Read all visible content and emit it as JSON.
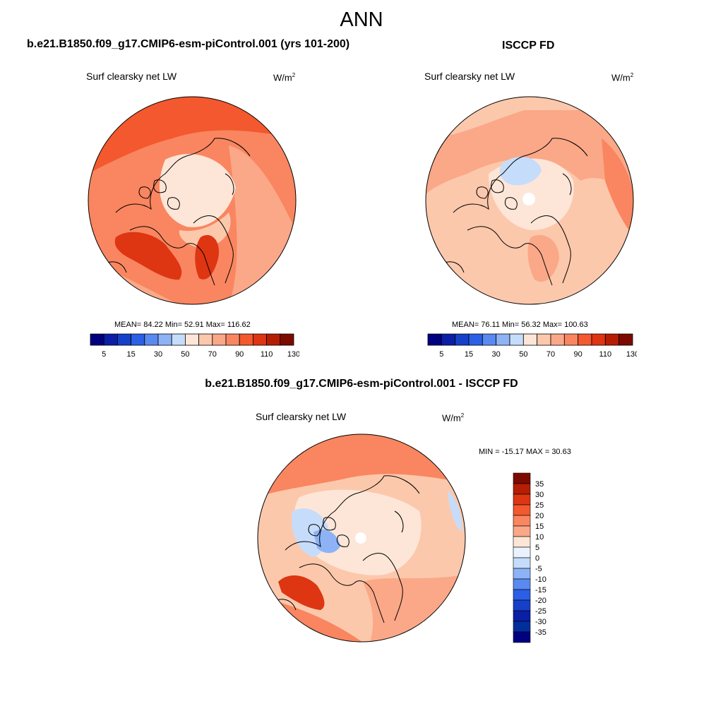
{
  "title": "ANN",
  "panels": [
    {
      "title": "b.e21.B1850.f09_g17.CMIP6-esm-piControl.001 (yrs 101-200)",
      "field_label": "Surf clearsky net LW",
      "units_base": "W/m",
      "units_exp": "2",
      "stats": "MEAN=  84.22  Min=  52.91  Max= 116.62"
    },
    {
      "title": "ISCCP FD",
      "field_label": "Surf clearsky net LW",
      "units_base": "W/m",
      "units_exp": "2",
      "stats": "MEAN=  76.11  Min=  56.32  Max= 100.63"
    },
    {
      "title": "b.e21.B1850.f09_g17.CMIP6-esm-piControl.001 - ISCCP FD",
      "field_label": "Surf clearsky net LW",
      "units_base": "W/m",
      "units_exp": "2",
      "stats": "MIN = -15.17 MAX =  30.63"
    }
  ],
  "colorbar_top": {
    "colors": [
      "#000080",
      "#0a1fa6",
      "#1640c8",
      "#2a5fe6",
      "#5a8af0",
      "#8db3f6",
      "#c6dcfb",
      "#fde6d7",
      "#fcc8ac",
      "#fba888",
      "#f98660",
      "#f4582e",
      "#de3512",
      "#b51e04",
      "#7d0a00"
    ],
    "labels": [
      "5",
      "15",
      "30",
      "50",
      "70",
      "90",
      "110",
      "130"
    ]
  },
  "colorbar_diff": {
    "colors": [
      "#7d0a00",
      "#b51e04",
      "#de3512",
      "#f4582e",
      "#f98660",
      "#fba888",
      "#fde6d7",
      "#eaf2fd",
      "#c6dcfb",
      "#8db3f6",
      "#5a8af0",
      "#2a5fe6",
      "#1640c8",
      "#0a1fa6",
      "#022e9c",
      "#000080"
    ],
    "labels": [
      "35",
      "30",
      "25",
      "20",
      "15",
      "10",
      "5",
      "0",
      "-5",
      "-10",
      "-15",
      "-20",
      "-25",
      "-30",
      "-35"
    ]
  },
  "map_colors": {
    "high": "#f4582e",
    "mid": "#f98660",
    "light": "#fba888",
    "pale": "#fcc8ac",
    "verypale": "#fde6d7",
    "blue_pale": "#c6dcfb",
    "blue": "#8db3f6",
    "dark": "#de3512"
  }
}
